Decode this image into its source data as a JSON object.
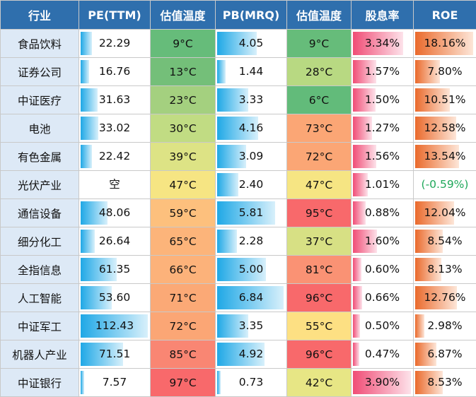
{
  "headers": [
    "行业",
    "PE(TTM)",
    "估值温度",
    "PB(MRQ)",
    "估值温度",
    "股息率",
    "ROE"
  ],
  "rows": [
    {
      "industry": "食品饮料",
      "pe": "22.29",
      "pe_temp": "9°C",
      "pb": "4.05",
      "pb_temp": "9°C",
      "div": "3.34%",
      "roe": "18.16%",
      "pe_bar": 0.17,
      "pe_color": "#66bc7a",
      "pb_bar": 0.58,
      "pb_color": "#66bc7a",
      "div_bar": 0.86,
      "roe_bar": 0.98
    },
    {
      "industry": "证券公司",
      "pe": "16.76",
      "pe_temp": "13°C",
      "pb": "1.44",
      "pb_temp": "28°C",
      "div": "1.57%",
      "roe": "7.80%",
      "pe_bar": 0.12,
      "pe_color": "#74bf79",
      "pb_bar": 0.12,
      "pb_color": "#b8d982",
      "div_bar": 0.4,
      "roe_bar": 0.42
    },
    {
      "industry": "中证医疗",
      "pe": "31.63",
      "pe_temp": "23°C",
      "pb": "3.33",
      "pb_temp": "6°C",
      "div": "1.50%",
      "roe": "10.51%",
      "pe_bar": 0.25,
      "pe_color": "#a4d07f",
      "pb_bar": 0.46,
      "pb_color": "#62bb7a",
      "div_bar": 0.38,
      "roe_bar": 0.58
    },
    {
      "industry": "电池",
      "pe": "33.02",
      "pe_temp": "30°C",
      "pb": "4.16",
      "pb_temp": "73°C",
      "div": "1.27%",
      "roe": "12.58%",
      "pe_bar": 0.26,
      "pe_color": "#c1dc83",
      "pb_bar": 0.6,
      "pb_color": "#fba675",
      "div_bar": 0.32,
      "roe_bar": 0.69
    },
    {
      "industry": "有色金属",
      "pe": "22.42",
      "pe_temp": "39°C",
      "pb": "3.09",
      "pb_temp": "72°C",
      "div": "1.56%",
      "roe": "13.54%",
      "pe_bar": 0.17,
      "pe_color": "#dde385",
      "pb_bar": 0.43,
      "pb_color": "#fba675",
      "div_bar": 0.4,
      "roe_bar": 0.74
    },
    {
      "industry": "光伏产业",
      "pe": "空",
      "pe_temp": "47°C",
      "pb": "2.40",
      "pb_temp": "47°C",
      "div": "1.01%",
      "roe": "(-0.59%)",
      "pe_bar": 0,
      "pe_color": "#f6e583",
      "pb_bar": 0.31,
      "pb_color": "#f6e583",
      "div_bar": 0.25,
      "roe_bar": 0
    },
    {
      "industry": "通信设备",
      "pe": "48.06",
      "pe_temp": "59°C",
      "pb": "5.81",
      "pb_temp": "95°C",
      "div": "0.88%",
      "roe": "12.04%",
      "pe_bar": 0.4,
      "pe_color": "#fdc07d",
      "pb_bar": 0.85,
      "pb_color": "#f8696b",
      "div_bar": 0.22,
      "roe_bar": 0.66
    },
    {
      "industry": "细分化工",
      "pe": "26.64",
      "pe_temp": "65°C",
      "pb": "2.28",
      "pb_temp": "37°C",
      "div": "1.60%",
      "roe": "8.54%",
      "pe_bar": 0.21,
      "pe_color": "#fcb47a",
      "pb_bar": 0.29,
      "pb_color": "#d7e084",
      "div_bar": 0.41,
      "roe_bar": 0.46
    },
    {
      "industry": "全指信息",
      "pe": "61.35",
      "pe_temp": "66°C",
      "pb": "5.00",
      "pb_temp": "81°C",
      "div": "0.60%",
      "roe": "8.13%",
      "pe_bar": 0.53,
      "pe_color": "#fcb27a",
      "pb_bar": 0.72,
      "pb_color": "#fa9274",
      "div_bar": 0.14,
      "roe_bar": 0.44
    },
    {
      "industry": "人工智能",
      "pe": "53.60",
      "pe_temp": "71°C",
      "pb": "6.84",
      "pb_temp": "96°C",
      "div": "0.66%",
      "roe": "12.76%",
      "pe_bar": 0.46,
      "pe_color": "#fba976",
      "pb_bar": 0.98,
      "pb_color": "#f8696b",
      "div_bar": 0.16,
      "roe_bar": 0.7
    },
    {
      "industry": "中证军工",
      "pe": "112.43",
      "pe_temp": "72°C",
      "pb": "3.35",
      "pb_temp": "55°C",
      "div": "0.50%",
      "roe": "2.98%",
      "pe_bar": 0.99,
      "pe_color": "#fba675",
      "pb_bar": 0.46,
      "pb_color": "#fde083",
      "div_bar": 0.12,
      "roe_bar": 0.15
    },
    {
      "industry": "机器人产业",
      "pe": "71.51",
      "pe_temp": "85°C",
      "pb": "4.92",
      "pb_temp": "96°C",
      "div": "0.47%",
      "roe": "6.87%",
      "pe_bar": 0.62,
      "pe_color": "#f98673",
      "pb_bar": 0.7,
      "pb_color": "#f8696b",
      "div_bar": 0.11,
      "roe_bar": 0.36
    },
    {
      "industry": "中证银行",
      "pe": "7.57",
      "pe_temp": "97°C",
      "pb": "0.73",
      "pb_temp": "42°C",
      "div": "3.90%",
      "roe": "8.53%",
      "pe_bar": 0.05,
      "pe_color": "#f8696b",
      "pb_bar": 0.05,
      "pb_color": "#e7e685",
      "div_bar": 0.99,
      "roe_bar": 0.46
    }
  ]
}
